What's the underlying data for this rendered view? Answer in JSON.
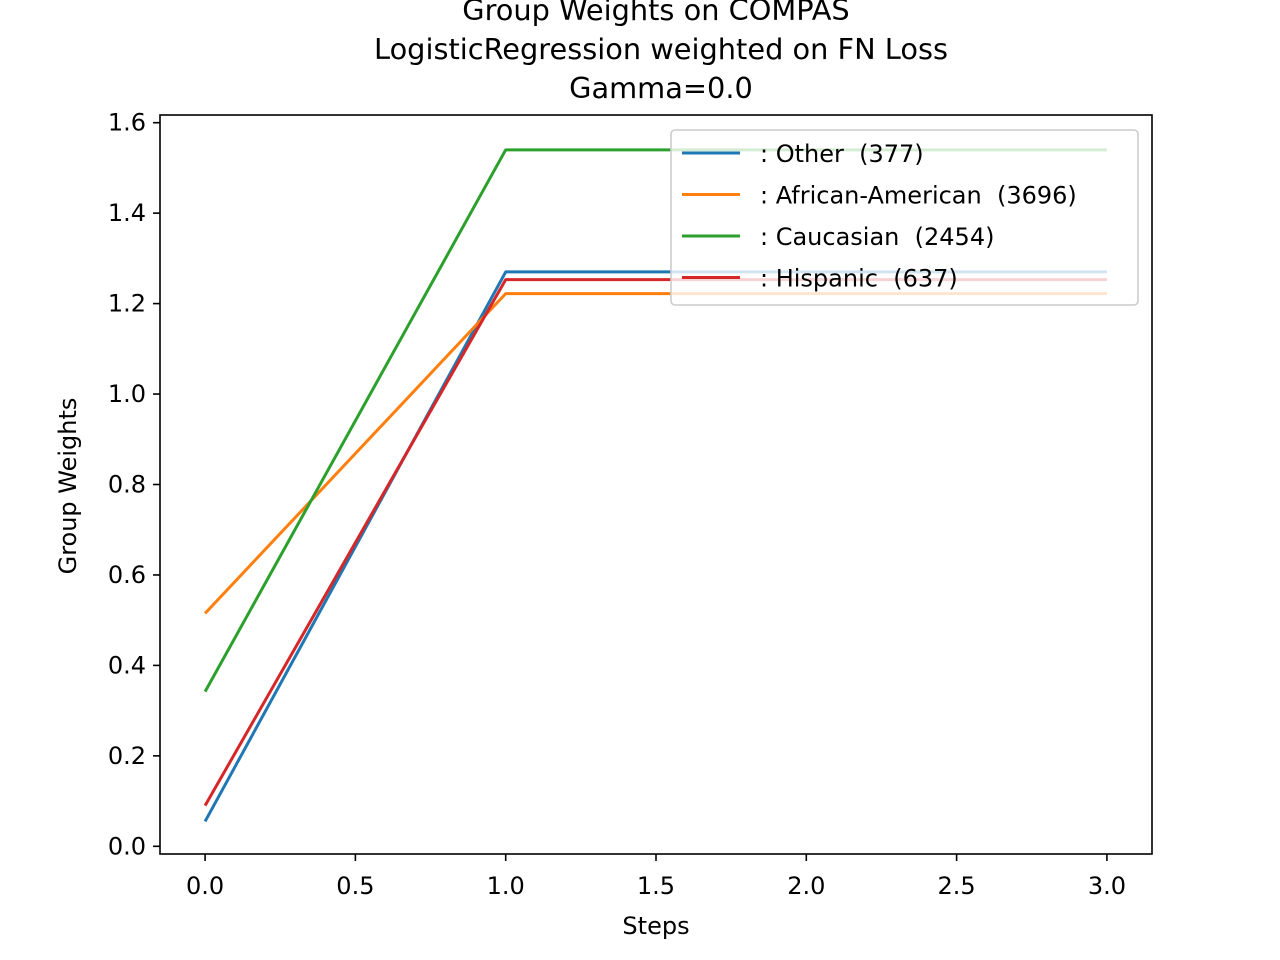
{
  "chart_data": {
    "type": "line",
    "title_lines": [
      "Group Weights on COMPAS",
      "LogisticRegression weighted on FN Loss",
      "Gamma=0.0"
    ],
    "xlabel": "Steps",
    "ylabel": "Group Weights",
    "x": [
      0,
      1,
      2,
      3
    ],
    "xlim": [
      -0.15,
      3.15
    ],
    "ylim": [
      -0.017,
      1.617
    ],
    "xticks": [
      0.0,
      0.5,
      1.0,
      1.5,
      2.0,
      2.5,
      3.0
    ],
    "xtick_labels": [
      "0.0",
      "0.5",
      "1.0",
      "1.5",
      "2.0",
      "2.5",
      "3.0"
    ],
    "yticks": [
      0.0,
      0.2,
      0.4,
      0.6,
      0.8,
      1.0,
      1.2,
      1.4,
      1.6
    ],
    "ytick_labels": [
      "0.0",
      "0.2",
      "0.4",
      "0.6",
      "0.8",
      "1.0",
      "1.2",
      "1.4",
      "1.6"
    ],
    "grid": false,
    "legend_position": "top-right",
    "series": [
      {
        "name": ": Other  (377)",
        "color": "#1f77b4",
        "values": [
          0.055,
          1.27,
          1.27,
          1.27
        ]
      },
      {
        "name": ": African-American  (3696)",
        "color": "#ff7f0e",
        "values": [
          0.515,
          1.222,
          1.222,
          1.222
        ]
      },
      {
        "name": ": Caucasian  (2454)",
        "color": "#2ca02c",
        "values": [
          0.342,
          1.54,
          1.54,
          1.54
        ]
      },
      {
        "name": ": Hispanic  (637)",
        "color": "#d62728",
        "values": [
          0.09,
          1.253,
          1.253,
          1.253
        ]
      }
    ]
  }
}
